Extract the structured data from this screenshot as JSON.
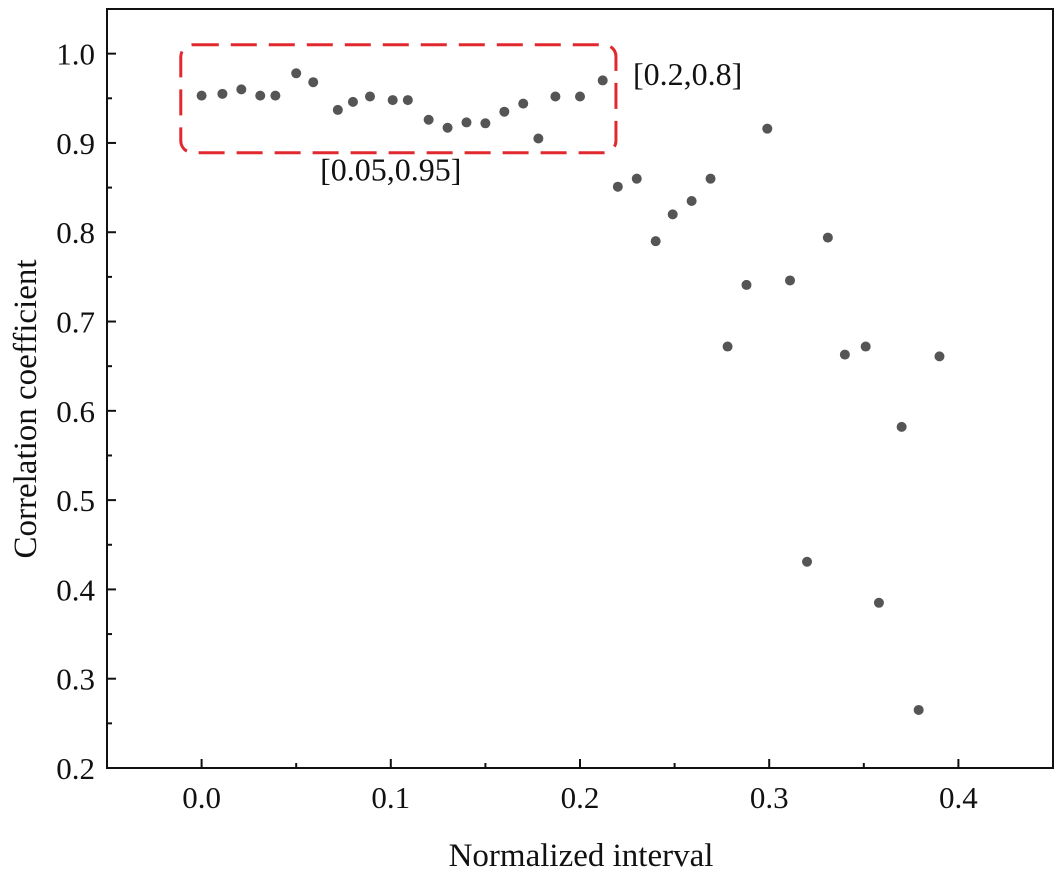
{
  "chart_data": {
    "type": "scatter",
    "title": "",
    "xlabel": "Normalized interval",
    "ylabel": "Correlation coefficient",
    "xlim": [
      -0.05,
      0.45
    ],
    "ylim": [
      0.2,
      1.05
    ],
    "xticks": [
      0.0,
      0.1,
      0.2,
      0.3,
      0.4
    ],
    "xtick_labels": [
      "0.0",
      "0.1",
      "0.2",
      "0.3",
      "0.4"
    ],
    "yticks": [
      0.2,
      0.3,
      0.4,
      0.5,
      0.6,
      0.7,
      0.8,
      0.9,
      1.0
    ],
    "ytick_labels": [
      "0.2",
      "0.3",
      "0.4",
      "0.5",
      "0.6",
      "0.7",
      "0.8",
      "0.9",
      "1.0"
    ],
    "grid": false,
    "marker_color": "#555555",
    "points": [
      {
        "x": 0.0,
        "y": 0.953
      },
      {
        "x": 0.011,
        "y": 0.955
      },
      {
        "x": 0.021,
        "y": 0.96
      },
      {
        "x": 0.031,
        "y": 0.953
      },
      {
        "x": 0.039,
        "y": 0.953
      },
      {
        "x": 0.05,
        "y": 0.978
      },
      {
        "x": 0.059,
        "y": 0.968
      },
      {
        "x": 0.072,
        "y": 0.937
      },
      {
        "x": 0.08,
        "y": 0.946
      },
      {
        "x": 0.089,
        "y": 0.952
      },
      {
        "x": 0.101,
        "y": 0.948
      },
      {
        "x": 0.109,
        "y": 0.948
      },
      {
        "x": 0.12,
        "y": 0.926
      },
      {
        "x": 0.13,
        "y": 0.917
      },
      {
        "x": 0.14,
        "y": 0.923
      },
      {
        "x": 0.15,
        "y": 0.922
      },
      {
        "x": 0.16,
        "y": 0.935
      },
      {
        "x": 0.17,
        "y": 0.944
      },
      {
        "x": 0.178,
        "y": 0.905
      },
      {
        "x": 0.187,
        "y": 0.952
      },
      {
        "x": 0.2,
        "y": 0.952
      },
      {
        "x": 0.212,
        "y": 0.97
      },
      {
        "x": 0.22,
        "y": 0.851
      },
      {
        "x": 0.23,
        "y": 0.86
      },
      {
        "x": 0.24,
        "y": 0.79
      },
      {
        "x": 0.249,
        "y": 0.82
      },
      {
        "x": 0.259,
        "y": 0.835
      },
      {
        "x": 0.269,
        "y": 0.86
      },
      {
        "x": 0.278,
        "y": 0.672
      },
      {
        "x": 0.288,
        "y": 0.741
      },
      {
        "x": 0.299,
        "y": 0.916
      },
      {
        "x": 0.311,
        "y": 0.746
      },
      {
        "x": 0.32,
        "y": 0.431
      },
      {
        "x": 0.331,
        "y": 0.794
      },
      {
        "x": 0.34,
        "y": 0.663
      },
      {
        "x": 0.351,
        "y": 0.672
      },
      {
        "x": 0.358,
        "y": 0.385
      },
      {
        "x": 0.37,
        "y": 0.582
      },
      {
        "x": 0.379,
        "y": 0.265
      },
      {
        "x": 0.39,
        "y": 0.661
      }
    ],
    "annotations": [
      {
        "text": "[0.2,0.8]",
        "x": 0.228,
        "y": 0.965
      },
      {
        "text": "[0.05,0.95]",
        "x": 0.1,
        "y": 0.858
      }
    ],
    "highlight_box": {
      "color": "#e0282e",
      "style": "dashed",
      "x_range": [
        -0.011,
        0.219
      ],
      "y_range": [
        0.889,
        1.01
      ]
    }
  }
}
